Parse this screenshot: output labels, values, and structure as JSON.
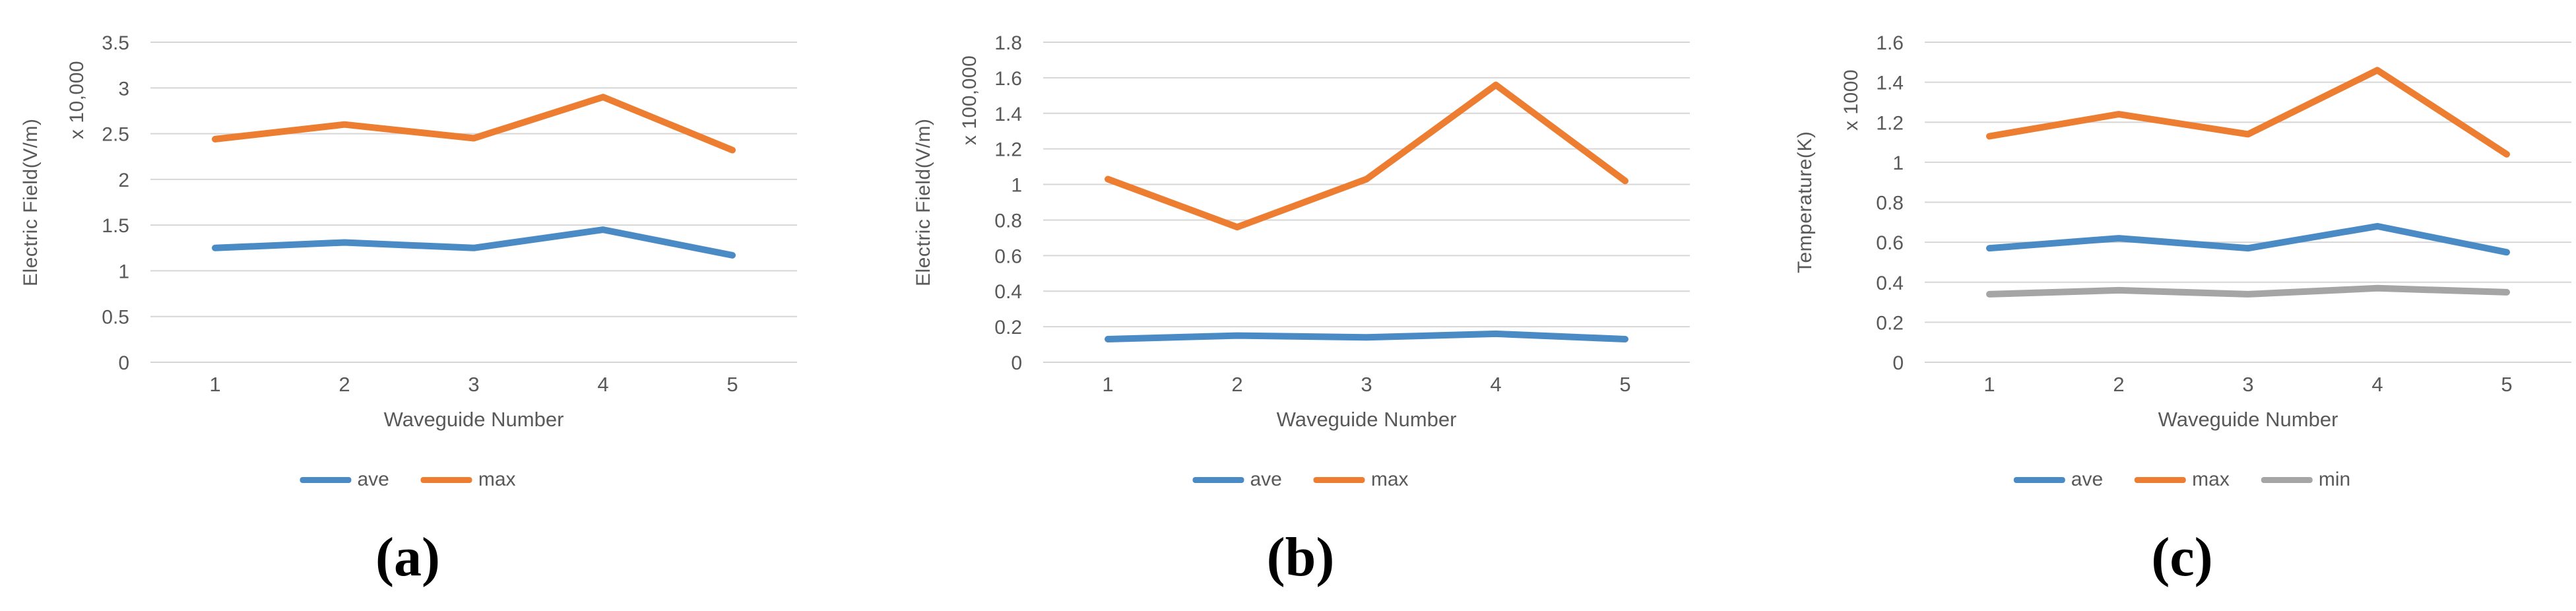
{
  "figure": {
    "description": "Three Excel-style line charts comparing field and temperature statistics across waveguides"
  },
  "chart_data": [
    {
      "type": "line",
      "caption": "(a)",
      "ylabel": "Electric Field(V/m)",
      "multiplier": "x 10,000",
      "xlabel": "Waveguide Number",
      "categories": [
        "1",
        "2",
        "3",
        "4",
        "5"
      ],
      "ylim": [
        0,
        3.5
      ],
      "ytick_labels": [
        "3.5",
        "3",
        "2.5",
        "2",
        "1.5",
        "1",
        "0.5",
        "0"
      ],
      "grid": true,
      "legend_position": "bottom",
      "series": [
        {
          "name": "ave",
          "color": "#4A8BC5",
          "values": [
            1.25,
            1.31,
            1.25,
            1.45,
            1.17
          ]
        },
        {
          "name": "max",
          "color": "#ED7D31",
          "values": [
            2.44,
            2.6,
            2.45,
            2.9,
            2.32
          ]
        }
      ]
    },
    {
      "type": "line",
      "caption": "(b)",
      "ylabel": "Electric Field(V/m)",
      "multiplier": "x 100,000",
      "xlabel": "Waveguide Number",
      "categories": [
        "1",
        "2",
        "3",
        "4",
        "5"
      ],
      "ylim": [
        0,
        1.8
      ],
      "ytick_labels": [
        "1.8",
        "1.6",
        "1.4",
        "1.2",
        "1",
        "0.8",
        "0.6",
        "0.4",
        "0.2",
        "0"
      ],
      "grid": true,
      "legend_position": "bottom",
      "series": [
        {
          "name": "ave",
          "color": "#4A8BC5",
          "values": [
            0.13,
            0.15,
            0.14,
            0.16,
            0.13
          ]
        },
        {
          "name": "max",
          "color": "#ED7D31",
          "values": [
            1.03,
            0.76,
            1.03,
            1.56,
            1.02
          ]
        }
      ]
    },
    {
      "type": "line",
      "caption": "(c)",
      "ylabel": "Temperature(K)",
      "multiplier": "x 1000",
      "xlabel": "Waveguide Number",
      "categories": [
        "1",
        "2",
        "3",
        "4",
        "5"
      ],
      "ylim": [
        0,
        1.6
      ],
      "ytick_labels": [
        "1.6",
        "1.4",
        "1.2",
        "1",
        "0.8",
        "0.6",
        "0.4",
        "0.2",
        "0"
      ],
      "grid": true,
      "legend_position": "bottom",
      "series": [
        {
          "name": "ave",
          "color": "#4A8BC5",
          "values": [
            0.57,
            0.62,
            0.57,
            0.68,
            0.55
          ]
        },
        {
          "name": "max",
          "color": "#ED7D31",
          "values": [
            1.13,
            1.24,
            1.14,
            1.46,
            1.04
          ]
        },
        {
          "name": "min",
          "color": "#A5A5A5",
          "values": [
            0.34,
            0.36,
            0.34,
            0.37,
            0.35
          ]
        }
      ]
    }
  ],
  "colors": {
    "accent_blue": "#4A8BC5",
    "accent_orange": "#ED7D31",
    "accent_gray": "#A5A5A5",
    "text_gray": "#595959",
    "gridline": "#d6d6d6"
  }
}
